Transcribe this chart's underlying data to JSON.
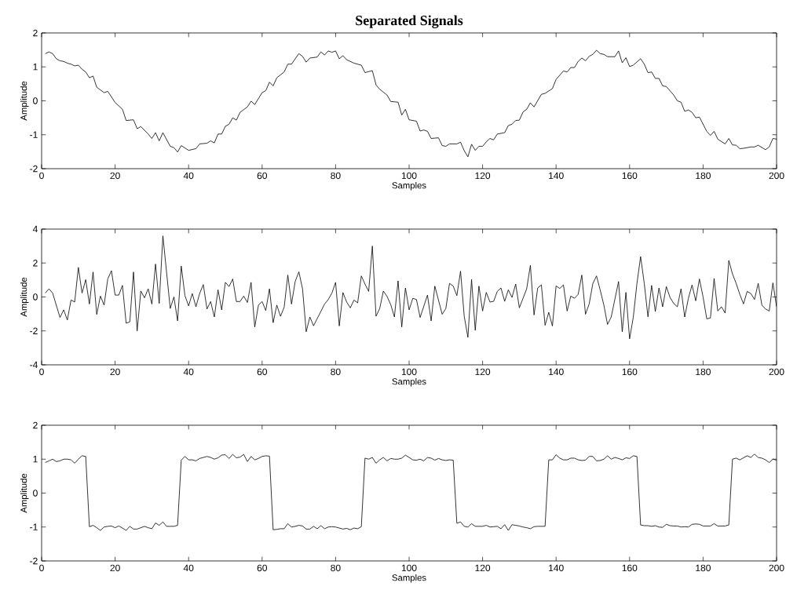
{
  "chart_data": [
    {
      "type": "line",
      "title": "Separated Signals",
      "xlabel": "Samples",
      "ylabel": "Amplitude",
      "xlim": [
        0,
        200
      ],
      "ylim": [
        -2,
        2
      ],
      "xticks": [
        0,
        20,
        40,
        60,
        80,
        100,
        120,
        140,
        160,
        180,
        200
      ],
      "yticks": [
        -2,
        -1,
        0,
        1,
        2
      ],
      "series": [
        {
          "color": "#000000",
          "x": [
            1,
            2,
            3,
            4,
            5,
            6,
            7,
            8,
            9,
            10,
            11,
            12,
            13,
            14,
            15,
            17,
            18,
            20,
            22,
            23,
            25,
            26,
            27,
            29,
            30,
            31,
            32,
            33,
            35,
            36,
            37,
            38,
            40,
            42,
            43,
            45,
            46,
            47,
            48,
            49,
            50,
            51,
            52,
            53,
            54,
            56,
            57,
            58,
            60,
            61,
            62,
            63,
            64,
            66,
            67,
            68,
            70,
            71,
            72,
            73,
            75,
            76,
            77,
            78,
            79,
            80,
            81,
            82,
            83,
            85,
            87,
            88,
            90,
            91,
            92,
            94,
            95,
            97,
            98,
            99,
            100,
            102,
            103,
            104,
            105,
            106,
            108,
            109,
            110,
            111,
            113,
            114,
            115,
            116,
            117,
            118,
            119,
            120,
            121,
            122,
            123,
            124,
            126,
            127,
            128,
            129,
            130,
            131,
            132,
            133,
            134,
            136,
            137,
            139,
            140,
            142,
            143,
            144,
            145,
            146,
            147,
            148,
            149,
            150,
            151,
            152,
            153,
            154,
            156,
            157,
            158,
            159,
            160,
            161,
            163,
            164,
            165,
            166,
            167,
            168,
            169,
            170,
            172,
            173,
            174,
            175,
            176,
            177,
            178,
            179,
            181,
            182,
            183,
            184,
            186,
            187,
            188,
            189,
            190,
            191,
            193,
            194,
            195,
            197,
            198,
            199,
            200
          ],
          "values": [
            1.39,
            1.44,
            1.39,
            1.24,
            1.18,
            1.16,
            1.11,
            1.08,
            1.03,
            1.05,
            0.93,
            0.85,
            0.68,
            0.73,
            0.4,
            0.24,
            0.28,
            -0.05,
            -0.25,
            -0.58,
            -0.56,
            -0.82,
            -0.76,
            -0.98,
            -1.11,
            -0.94,
            -1.18,
            -0.94,
            -1.34,
            -1.38,
            -1.51,
            -1.32,
            -1.46,
            -1.41,
            -1.27,
            -1.25,
            -1.18,
            -1.24,
            -0.98,
            -0.98,
            -0.75,
            -0.69,
            -0.5,
            -0.57,
            -0.34,
            -0.18,
            -0.01,
            -0.11,
            0.24,
            0.3,
            0.55,
            0.44,
            0.68,
            0.85,
            1.08,
            1.08,
            1.39,
            1.31,
            1.14,
            1.26,
            1.29,
            1.44,
            1.35,
            1.47,
            1.43,
            1.47,
            1.24,
            1.33,
            1.21,
            1.11,
            1.05,
            0.83,
            0.89,
            0.47,
            0.34,
            0.17,
            -0.02,
            -0.04,
            -0.42,
            -0.25,
            -0.56,
            -0.6,
            -0.89,
            -0.86,
            -0.9,
            -1.11,
            -1.09,
            -1.32,
            -1.34,
            -1.27,
            -1.27,
            -1.22,
            -1.47,
            -1.65,
            -1.28,
            -1.46,
            -1.34,
            -1.34,
            -1.21,
            -1.11,
            -1.15,
            -0.98,
            -0.94,
            -0.73,
            -0.69,
            -0.58,
            -0.57,
            -0.33,
            -0.25,
            -0.06,
            -0.18,
            0.19,
            0.22,
            0.36,
            0.63,
            0.88,
            0.85,
            0.98,
            0.98,
            1.16,
            1.26,
            1.18,
            1.31,
            1.37,
            1.49,
            1.39,
            1.37,
            1.3,
            1.3,
            1.47,
            1.12,
            1.27,
            1.01,
            1.05,
            1.24,
            1.08,
            0.83,
            0.85,
            0.66,
            0.66,
            0.44,
            0.42,
            0.17,
            0.0,
            -0.04,
            -0.31,
            -0.27,
            -0.34,
            -0.5,
            -0.48,
            -0.9,
            -1.02,
            -0.9,
            -1.13,
            -1.27,
            -1.11,
            -1.3,
            -1.31,
            -1.41,
            -1.4,
            -1.36,
            -1.36,
            -1.31,
            -1.44,
            -1.36,
            -1.11,
            -1.13
          ]
        }
      ]
    },
    {
      "type": "line",
      "xlabel": "Samples",
      "ylabel": "Amplitude",
      "xlim": [
        0,
        200
      ],
      "ylim": [
        -4,
        4
      ],
      "xticks": [
        0,
        20,
        40,
        60,
        80,
        100,
        120,
        140,
        160,
        180,
        200
      ],
      "yticks": [
        -4,
        -2,
        0,
        2,
        4
      ],
      "series": [
        {
          "color": "#000000",
          "x": [
            1,
            2,
            3,
            5,
            6,
            7,
            8,
            9,
            10,
            11,
            12,
            13,
            14,
            15,
            16,
            17,
            18,
            19,
            20,
            21,
            22,
            23,
            24,
            25,
            26,
            27,
            28,
            29,
            30,
            31,
            32,
            33,
            35,
            36,
            37,
            38,
            39,
            40,
            41,
            42,
            43,
            44,
            45,
            46,
            47,
            48,
            49,
            50,
            51,
            52,
            53,
            54,
            55,
            56,
            57,
            58,
            59,
            60,
            61,
            62,
            63,
            64,
            65,
            66,
            67,
            68,
            69,
            70,
            71,
            72,
            73,
            74,
            77,
            78,
            79,
            80,
            81,
            82,
            83,
            84,
            85,
            86,
            87,
            88,
            89,
            90,
            91,
            92,
            93,
            94,
            95,
            96,
            97,
            98,
            99,
            100,
            101,
            102,
            103,
            105,
            106,
            107,
            109,
            110,
            111,
            112,
            113,
            114,
            115,
            116,
            117,
            118,
            119,
            120,
            121,
            122,
            123,
            124,
            125,
            126,
            127,
            128,
            129,
            130,
            132,
            133,
            134,
            135,
            136,
            137,
            138,
            139,
            140,
            141,
            142,
            143,
            144,
            145,
            146,
            147,
            148,
            149,
            150,
            151,
            152,
            153,
            154,
            155,
            157,
            158,
            159,
            160,
            161,
            162,
            163,
            164,
            165,
            166,
            167,
            168,
            169,
            170,
            171,
            172,
            173,
            174,
            175,
            176,
            177,
            178,
            179,
            180,
            181,
            182,
            183,
            184,
            185,
            186,
            187,
            188,
            189,
            190,
            191,
            192,
            193,
            194,
            195,
            196,
            197,
            198,
            199,
            200
          ],
          "values": [
            0.23,
            0.48,
            0.23,
            -1.21,
            -0.76,
            -1.36,
            -0.18,
            -0.3,
            1.74,
            0.23,
            1.02,
            -0.42,
            1.47,
            -1.03,
            0.05,
            -0.48,
            1.06,
            1.55,
            0.11,
            0.11,
            0.68,
            -1.55,
            -1.47,
            1.47,
            -2.0,
            0.35,
            -0.05,
            0.48,
            -0.42,
            1.94,
            -0.38,
            3.6,
            -0.68,
            0,
            -1.41,
            1.82,
            0.08,
            -0.53,
            0.2,
            -0.58,
            0.2,
            0.73,
            -0.71,
            -0.27,
            -1.18,
            0.42,
            -0.76,
            0.86,
            0.61,
            1.06,
            -0.27,
            -0.27,
            0.05,
            -0.33,
            0.86,
            -1.77,
            -0.48,
            -0.27,
            -0.8,
            0.48,
            -1.52,
            -0.48,
            -1.14,
            -0.61,
            1.29,
            -0.42,
            0.91,
            1.48,
            0.48,
            -2.05,
            -1.18,
            -1.7,
            -0.42,
            -0.15,
            0.23,
            0.86,
            -1.71,
            0.26,
            -0.3,
            -0.64,
            -0.18,
            -0.35,
            1.24,
            0.76,
            0.33,
            3.0,
            -1.14,
            -0.68,
            0.35,
            0.03,
            -0.45,
            -1.18,
            0.95,
            -1.77,
            0.53,
            -0.76,
            -0.08,
            -0.15,
            -1.21,
            0.11,
            -1.41,
            0.64,
            -1.02,
            -0.68,
            0.8,
            0.64,
            0.08,
            1.52,
            -1.14,
            -2.38,
            1.03,
            -1.97,
            0.64,
            -0.83,
            0.27,
            -0.3,
            -0.26,
            0.33,
            0.53,
            -0.26,
            0.42,
            -0.03,
            0.76,
            -0.64,
            0.48,
            1.86,
            -1.06,
            0.53,
            0.71,
            -1.67,
            -0.91,
            -1.71,
            0.65,
            0.5,
            0.71,
            -0.83,
            0.05,
            -0.08,
            0.15,
            1.29,
            -1.02,
            -0.42,
            0.79,
            1.24,
            0.41,
            -0.48,
            -1.62,
            -1.18,
            0.91,
            -2.05,
            0.27,
            -2.47,
            -1.21,
            0.79,
            2.38,
            0.79,
            -1.17,
            0.68,
            -0.86,
            0.53,
            -0.58,
            0.61,
            -0.03,
            -0.38,
            -0.58,
            0.48,
            -1.18,
            -0.08,
            0.71,
            -0.23,
            1.06,
            0,
            -1.29,
            -1.24,
            1.09,
            -0.83,
            -0.58,
            -0.95,
            2.15,
            1.36,
            0.8,
            0.15,
            -0.41,
            0.33,
            0.2,
            -0.15,
            0.8,
            -0.48,
            -0.71,
            -0.83,
            0.83,
            -0.58
          ]
        }
      ]
    },
    {
      "type": "line",
      "xlabel": "Samples",
      "ylabel": "Amplitude",
      "xlim": [
        0,
        200
      ],
      "ylim": [
        -2,
        2
      ],
      "xticks": [
        0,
        20,
        40,
        60,
        80,
        100,
        120,
        140,
        160,
        180,
        200
      ],
      "yticks": [
        -2,
        -1,
        0,
        1,
        2
      ],
      "series": [
        {
          "color": "#000000",
          "x": [
            1,
            2,
            3,
            4,
            5,
            6,
            7,
            8,
            9,
            10,
            11,
            12,
            13,
            14,
            15,
            16,
            17,
            18,
            19,
            20,
            21,
            22,
            23,
            24,
            25,
            26,
            27,
            28,
            29,
            30,
            31,
            32,
            33,
            34,
            35,
            36,
            37,
            38,
            39,
            40,
            41,
            42,
            43,
            44,
            45,
            46,
            47,
            48,
            49,
            50,
            51,
            52,
            53,
            54,
            55,
            56,
            57,
            58,
            59,
            60,
            61,
            62,
            63,
            64,
            65,
            66,
            67,
            68,
            69,
            70,
            71,
            72,
            73,
            74,
            75,
            76,
            77,
            78,
            79,
            80,
            81,
            82,
            83,
            84,
            85,
            86,
            87,
            88,
            89,
            90,
            91,
            92,
            93,
            94,
            95,
            96,
            97,
            98,
            99,
            100,
            101,
            102,
            103,
            104,
            105,
            106,
            107,
            108,
            109,
            110,
            111,
            112,
            113,
            114,
            115,
            116,
            117,
            118,
            119,
            120,
            121,
            122,
            123,
            124,
            125,
            126,
            127,
            128,
            129,
            130,
            131,
            132,
            133,
            134,
            135,
            136,
            137,
            138,
            139,
            140,
            141,
            142,
            143,
            144,
            145,
            146,
            147,
            148,
            149,
            150,
            151,
            152,
            153,
            154,
            155,
            156,
            157,
            158,
            159,
            160,
            161,
            162,
            163,
            164,
            165,
            166,
            167,
            168,
            169,
            170,
            171,
            172,
            173,
            174,
            175,
            176,
            177,
            178,
            179,
            180,
            181,
            182,
            183,
            184,
            185,
            186,
            187,
            188,
            189,
            190,
            191,
            192,
            193,
            194,
            195,
            196,
            197,
            198,
            199,
            200
          ],
          "values": [
            0.9,
            0.95,
            1.0,
            0.93,
            0.95,
            1.0,
            1.0,
            0.98,
            0.88,
            1.0,
            1.1,
            1.08,
            -0.99,
            -0.95,
            -1.02,
            -1.1,
            -1.0,
            -0.98,
            -0.97,
            -1.02,
            -0.97,
            -1.03,
            -1.1,
            -0.98,
            -1.06,
            -1.06,
            -1.02,
            -0.98,
            -1.02,
            -1.05,
            -0.88,
            -0.95,
            -0.85,
            -0.98,
            -0.98,
            -0.98,
            -0.95,
            0.97,
            1.08,
            0.98,
            0.98,
            0.95,
            1.02,
            1.05,
            1.08,
            1.05,
            1.0,
            1.04,
            1.12,
            1.13,
            1.02,
            1.14,
            1.04,
            1.06,
            1.14,
            0.93,
            1.08,
            0.98,
            1.02,
            1.08,
            1.1,
            1.09,
            -1.08,
            -1.07,
            -1.05,
            -1.05,
            -0.9,
            -1.0,
            -0.98,
            -0.95,
            -0.97,
            -1.06,
            -1.06,
            -0.98,
            -1.05,
            -0.96,
            -1.05,
            -1.0,
            -0.99,
            -1.0,
            -1.03,
            -1.06,
            -1.04,
            -1.08,
            -1.03,
            -1.05,
            -0.99,
            1.03,
            1.0,
            1.05,
            0.88,
            0.98,
            1.05,
            0.95,
            1.02,
            1.0,
            1.0,
            1.03,
            1.12,
            1.05,
            0.98,
            0.97,
            1.0,
            0.95,
            1.05,
            1.03,
            0.97,
            1.02,
            0.98,
            0.96,
            0.98,
            0.97,
            -0.89,
            -0.85,
            -0.98,
            -1.0,
            -0.9,
            -0.98,
            -0.98,
            -0.98,
            -0.95,
            -1.0,
            -0.99,
            -0.98,
            -1.05,
            -0.93,
            -1.1,
            -0.93,
            -0.95,
            -0.97,
            -1.0,
            -1.02,
            -1.05,
            -0.99,
            -0.98,
            -0.98,
            -0.98,
            0.98,
            0.98,
            1.13,
            1.03,
            0.98,
            0.98,
            1.03,
            1.03,
            0.98,
            0.96,
            0.97,
            1.08,
            1.08,
            0.95,
            0.96,
            1.0,
            1.1,
            1.0,
            1.05,
            1.02,
            0.98,
            1.04,
            1.02,
            1.1,
            1.08,
            -0.94,
            -0.96,
            -0.96,
            -0.98,
            -0.96,
            -1.0,
            -1.01,
            -0.92,
            -0.96,
            -0.97,
            -0.97,
            -1.0,
            -0.99,
            -1.0,
            -0.92,
            -0.91,
            -0.92,
            -0.97,
            -0.97,
            -0.97,
            -0.9,
            -0.97,
            -0.97,
            -0.97,
            -0.94,
            1.0,
            1.03,
            0.98,
            1.04,
            1.1,
            1.05,
            1.15,
            1.05,
            1.03,
            0.98,
            0.9,
            1.0,
            0.97
          ]
        }
      ]
    }
  ]
}
